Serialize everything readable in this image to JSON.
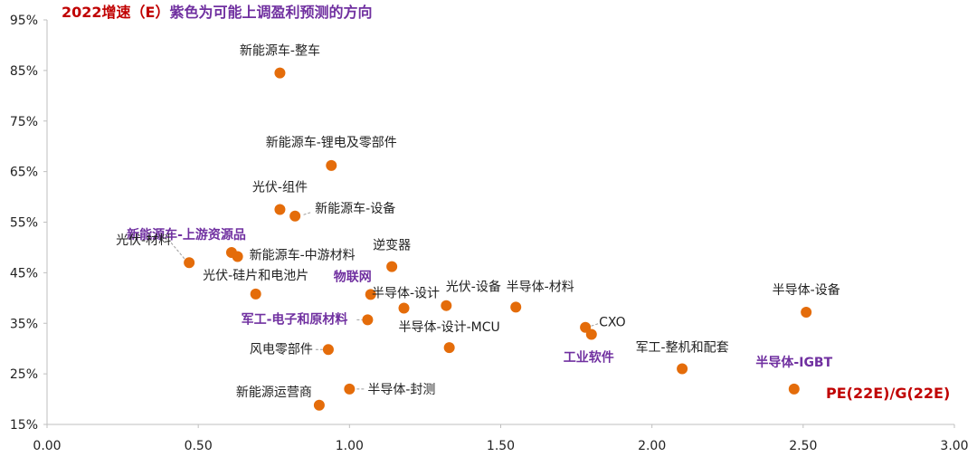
{
  "chart_data": {
    "type": "scatter",
    "title_part1": "2022增速（E）",
    "title_part2": "紫色为可能上调盈利预测的方向",
    "xlabel": "PE(22E)/G(22E)",
    "ylabel": "",
    "xlim": [
      0,
      3
    ],
    "ylim": [
      15,
      95
    ],
    "x_ticks": [
      "0.00",
      "0.50",
      "1.00",
      "1.50",
      "2.00",
      "2.50",
      "3.00"
    ],
    "y_ticks": [
      "15%",
      "25%",
      "35%",
      "45%",
      "55%",
      "65%",
      "75%",
      "85%",
      "95%"
    ],
    "grid": false,
    "colors": {
      "marker": "#e46c0a",
      "title": "#c00000",
      "highlight": "#7030a0",
      "text": "#222222"
    },
    "points": [
      {
        "label": "新能源车-整车",
        "x": 0.77,
        "y": 84.5,
        "highlight": false
      },
      {
        "label": "新能源车-锂电及零部件",
        "x": 0.94,
        "y": 66.2,
        "highlight": false
      },
      {
        "label": "光伏-组件",
        "x": 0.77,
        "y": 57.5,
        "highlight": false
      },
      {
        "label": "新能源车-设备",
        "x": 0.82,
        "y": 56.2,
        "highlight": false
      },
      {
        "label": "新能源车-上游资源品",
        "x": 0.61,
        "y": 49.0,
        "highlight": true
      },
      {
        "label": "新能源车-中游材料",
        "x": 0.63,
        "y": 48.2,
        "highlight": false
      },
      {
        "label": "光伏-材料",
        "x": 0.47,
        "y": 47.0,
        "highlight": false
      },
      {
        "label": "逆变器",
        "x": 1.14,
        "y": 46.2,
        "highlight": false
      },
      {
        "label": "光伏-硅片和电池片",
        "x": 0.69,
        "y": 40.8,
        "highlight": false
      },
      {
        "label": "物联网",
        "x": 1.07,
        "y": 40.7,
        "highlight": true
      },
      {
        "label": "半导体-设计",
        "x": 1.18,
        "y": 38.0,
        "highlight": false
      },
      {
        "label": "光伏-设备",
        "x": 1.32,
        "y": 38.5,
        "highlight": false
      },
      {
        "label": "半导体-材料",
        "x": 1.55,
        "y": 38.2,
        "highlight": false
      },
      {
        "label": "军工-电子和原材料",
        "x": 1.06,
        "y": 35.7,
        "highlight": true
      },
      {
        "label": "半导体-设计-MCU",
        "x": 1.33,
        "y": 30.2,
        "highlight": false
      },
      {
        "label": "CXO",
        "x": 1.78,
        "y": 34.2,
        "highlight": false
      },
      {
        "label": "工业软件",
        "x": 1.8,
        "y": 32.8,
        "highlight": true
      },
      {
        "label": "风电零部件",
        "x": 0.93,
        "y": 29.8,
        "highlight": false
      },
      {
        "label": "半导体-设备",
        "x": 2.51,
        "y": 37.2,
        "highlight": false
      },
      {
        "label": "军工-整机和配套",
        "x": 2.1,
        "y": 26.0,
        "highlight": false
      },
      {
        "label": "半导体-IGBT",
        "x": 2.47,
        "y": 22.0,
        "highlight": true
      },
      {
        "label": "新能源运营商",
        "x": 0.9,
        "y": 18.8,
        "highlight": false
      },
      {
        "label": "半导体-封测",
        "x": 1.0,
        "y": 22.0,
        "highlight": false
      }
    ]
  }
}
